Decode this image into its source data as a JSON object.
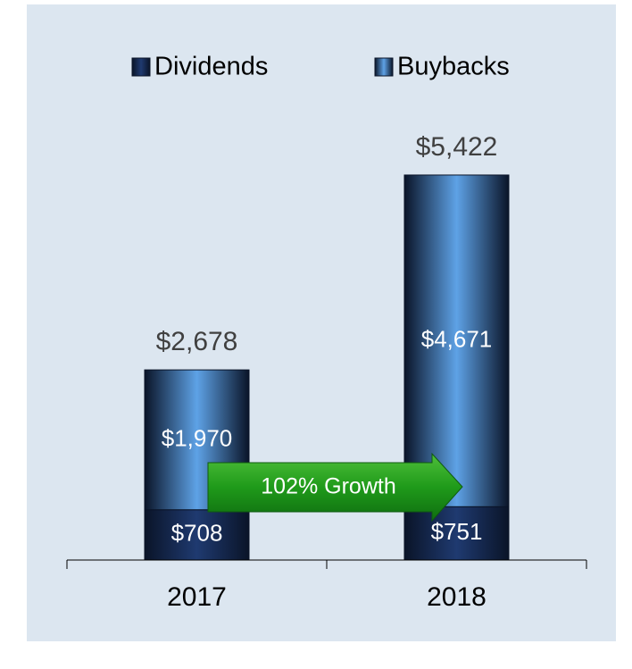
{
  "chart_data": {
    "type": "stacked_bar",
    "categories": [
      "2017",
      "2018"
    ],
    "series": [
      {
        "name": "Dividends",
        "color": "#1f3a70",
        "values": [
          708,
          751
        ],
        "value_labels": [
          "$708",
          "$751"
        ]
      },
      {
        "name": "Buybacks",
        "color": "#5ea2e6",
        "values": [
          1970,
          4671
        ],
        "value_labels": [
          "$1,970",
          "$4,671"
        ]
      }
    ],
    "totals": {
      "values": [
        2678,
        5422
      ],
      "value_labels": [
        "$2,678",
        "$5,422"
      ]
    },
    "annotation": "102% Growth",
    "ylim": [
      0,
      6000
    ],
    "legend": "top"
  }
}
